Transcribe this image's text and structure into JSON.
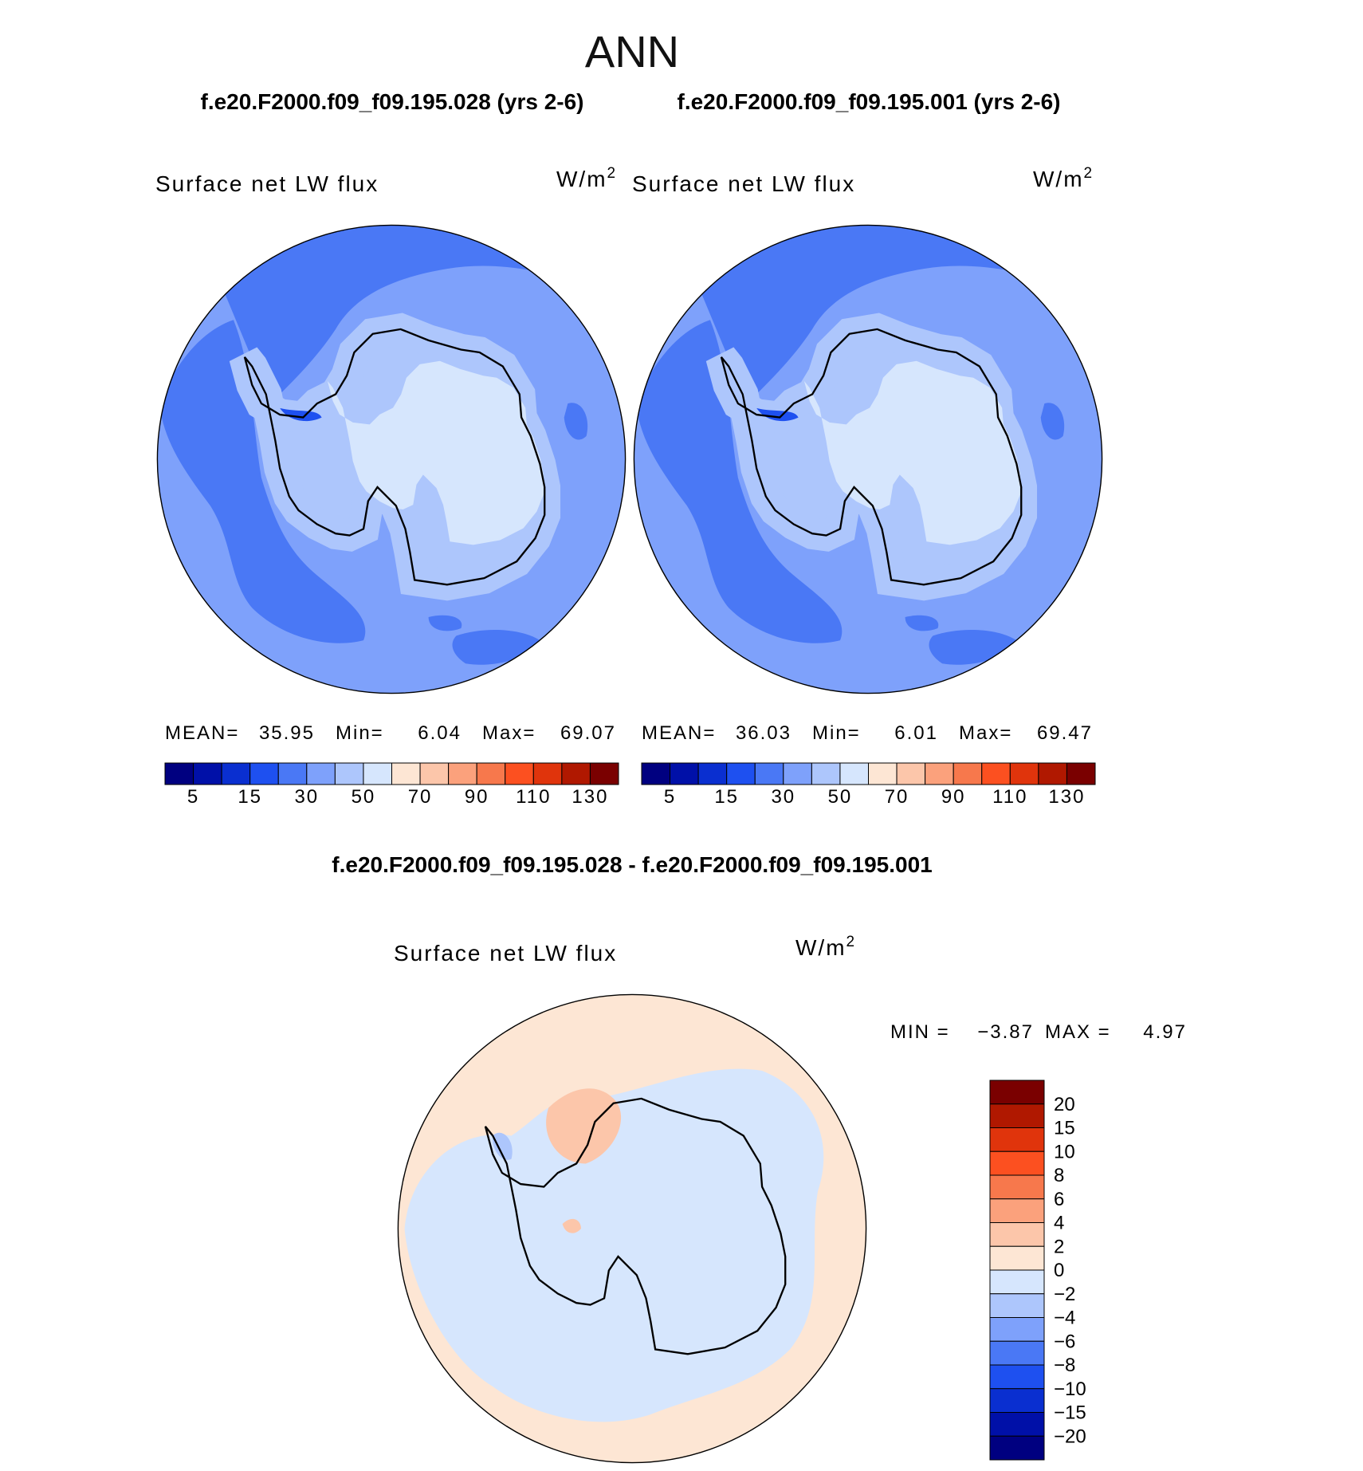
{
  "title": "ANN",
  "panels": [
    {
      "case": "f.e20.F2000.f09_f09.195.028 (yrs 2-6)",
      "variable": "Surface net LW flux",
      "units": "W/m",
      "units_sup": "2",
      "stats": [
        {
          "label": "MEAN=",
          "value": "35.95"
        },
        {
          "label": "Min=",
          "value": "6.04"
        },
        {
          "label": "Max=",
          "value": "69.07"
        }
      ],
      "colorbar": {
        "colors": [
          "#000080",
          "#0010a8",
          "#0a2fd0",
          "#1e50f0",
          "#4a78f5",
          "#7ea1fb",
          "#adc6fc",
          "#d6e6fd",
          "#fde6d4",
          "#fcc6aa",
          "#fba17c",
          "#f7784c",
          "#fc5020",
          "#e0340c",
          "#b01800",
          "#7a0000"
        ],
        "labels": [
          "5",
          "15",
          "30",
          "50",
          "70",
          "90",
          "110",
          "130"
        ]
      }
    },
    {
      "case": "f.e20.F2000.f09_f09.195.001 (yrs 2-6)",
      "variable": "Surface net LW flux",
      "units": "W/m",
      "units_sup": "2",
      "stats": [
        {
          "label": "MEAN=",
          "value": "36.03"
        },
        {
          "label": "Min=",
          "value": "6.01"
        },
        {
          "label": "Max=",
          "value": "69.47"
        }
      ],
      "colorbar": {
        "colors": [
          "#000080",
          "#0010a8",
          "#0a2fd0",
          "#1e50f0",
          "#4a78f5",
          "#7ea1fb",
          "#adc6fc",
          "#d6e6fd",
          "#fde6d4",
          "#fcc6aa",
          "#fba17c",
          "#f7784c",
          "#fc5020",
          "#e0340c",
          "#b01800",
          "#7a0000"
        ],
        "labels": [
          "5",
          "15",
          "30",
          "50",
          "70",
          "90",
          "110",
          "130"
        ]
      }
    }
  ],
  "difference": {
    "title": "f.e20.F2000.f09_f09.195.028 - f.e20.F2000.f09_f09.195.001",
    "variable": "Surface net LW flux",
    "units": "W/m",
    "units_sup": "2",
    "stats": [
      {
        "label": "MIN =",
        "value": "−3.87"
      },
      {
        "label": "MAX =",
        "value": "4.97"
      }
    ],
    "colorbar": {
      "colors": [
        "#7a0000",
        "#b01800",
        "#e0340c",
        "#fc5020",
        "#f7784c",
        "#fba17c",
        "#fcc6aa",
        "#fde6d4",
        "#d6e6fd",
        "#adc6fc",
        "#7ea1fb",
        "#4a78f5",
        "#1e50f0",
        "#0a2fd0",
        "#0010a8",
        "#000080"
      ],
      "labels": [
        "20",
        "15",
        "10",
        "8",
        "6",
        "4",
        "2",
        "0",
        "−2",
        "−4",
        "−6",
        "−8",
        "−10",
        "−15",
        "−20"
      ]
    }
  }
}
